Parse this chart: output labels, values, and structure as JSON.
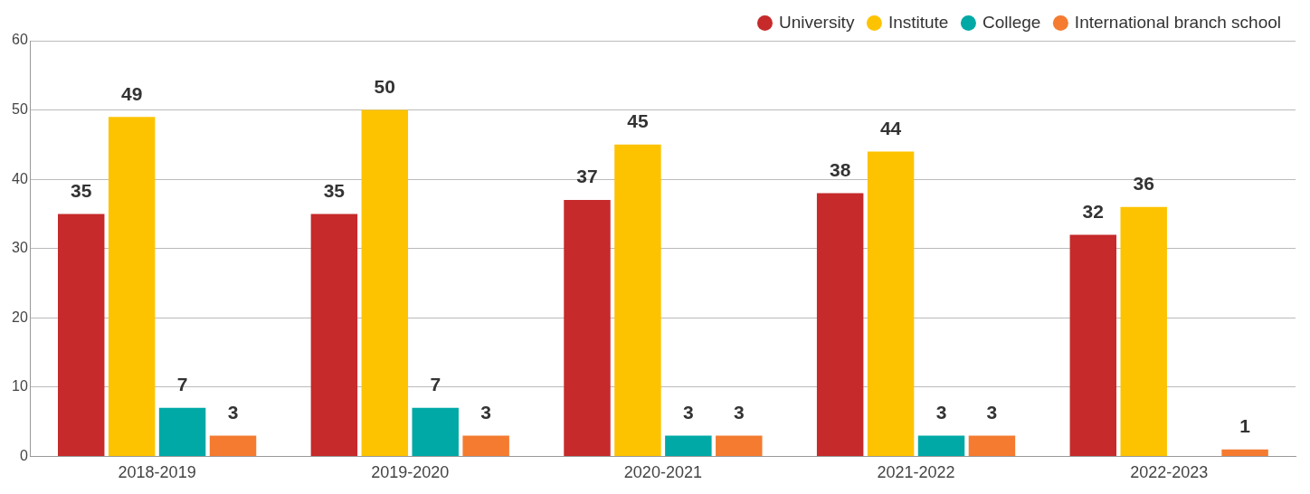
{
  "chart_data": {
    "type": "bar",
    "categories": [
      "2018-2019",
      "2019-2020",
      "2020-2021",
      "2021-2022",
      "2022-2023"
    ],
    "series": [
      {
        "name": "University",
        "color": "#c62a2a",
        "values": [
          35,
          35,
          37,
          38,
          32
        ]
      },
      {
        "name": "Institute",
        "color": "#fdc300",
        "values": [
          49,
          50,
          45,
          44,
          36
        ]
      },
      {
        "name": "College",
        "color": "#00a9a5",
        "values": [
          7,
          7,
          3,
          3,
          null
        ]
      },
      {
        "name": "International branch school",
        "color": "#f47b30",
        "values": [
          3,
          3,
          3,
          3,
          1
        ]
      }
    ],
    "ylim": [
      0,
      60
    ],
    "yticks": [
      0,
      10,
      20,
      30,
      40,
      50,
      60
    ],
    "grid": "y",
    "legend": "top right",
    "data_labels": true
  }
}
